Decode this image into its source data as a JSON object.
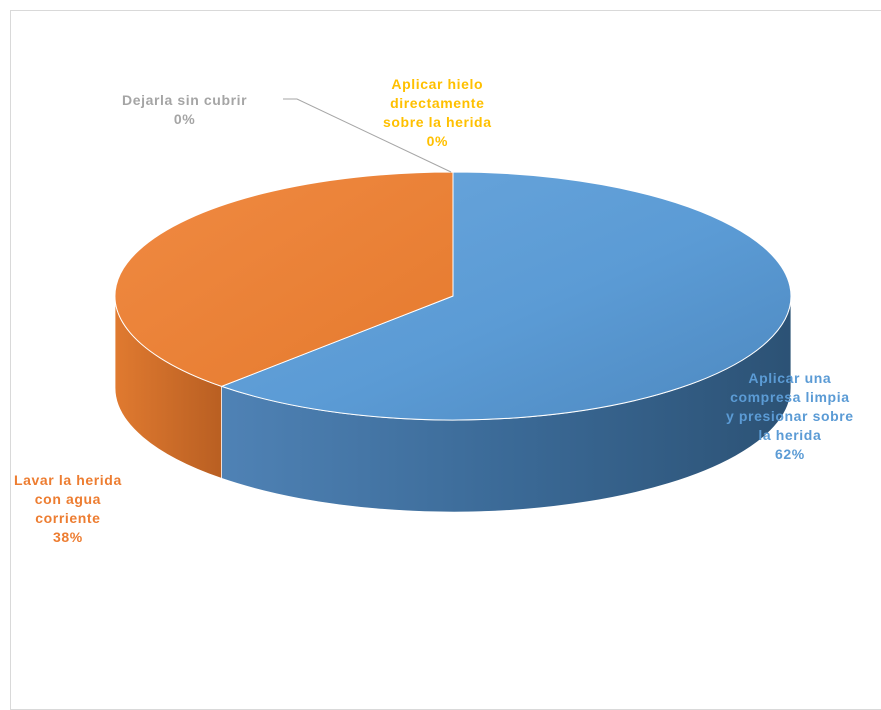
{
  "chart_data": {
    "type": "pie",
    "style": "3d",
    "slices": [
      {
        "label_lines": [
          "Aplicar una",
          "compresa limpia",
          "y presionar sobre",
          "la herida"
        ],
        "value_label": "62%",
        "value": 62,
        "color": "#5B9BD5"
      },
      {
        "label_lines": [
          "Lavar la herida",
          "con agua",
          "corriente"
        ],
        "value_label": "38%",
        "value": 38,
        "color": "#ED7D31"
      },
      {
        "label_lines": [
          "Dejarla sin cubrir"
        ],
        "value_label": "0%",
        "value": 0,
        "color": "#A5A5A5"
      },
      {
        "label_lines": [
          "Aplicar hielo",
          "directamente",
          "sobre la herida"
        ],
        "value_label": "0%",
        "value": 0,
        "color": "#FFC000"
      }
    ],
    "legend": "none"
  }
}
